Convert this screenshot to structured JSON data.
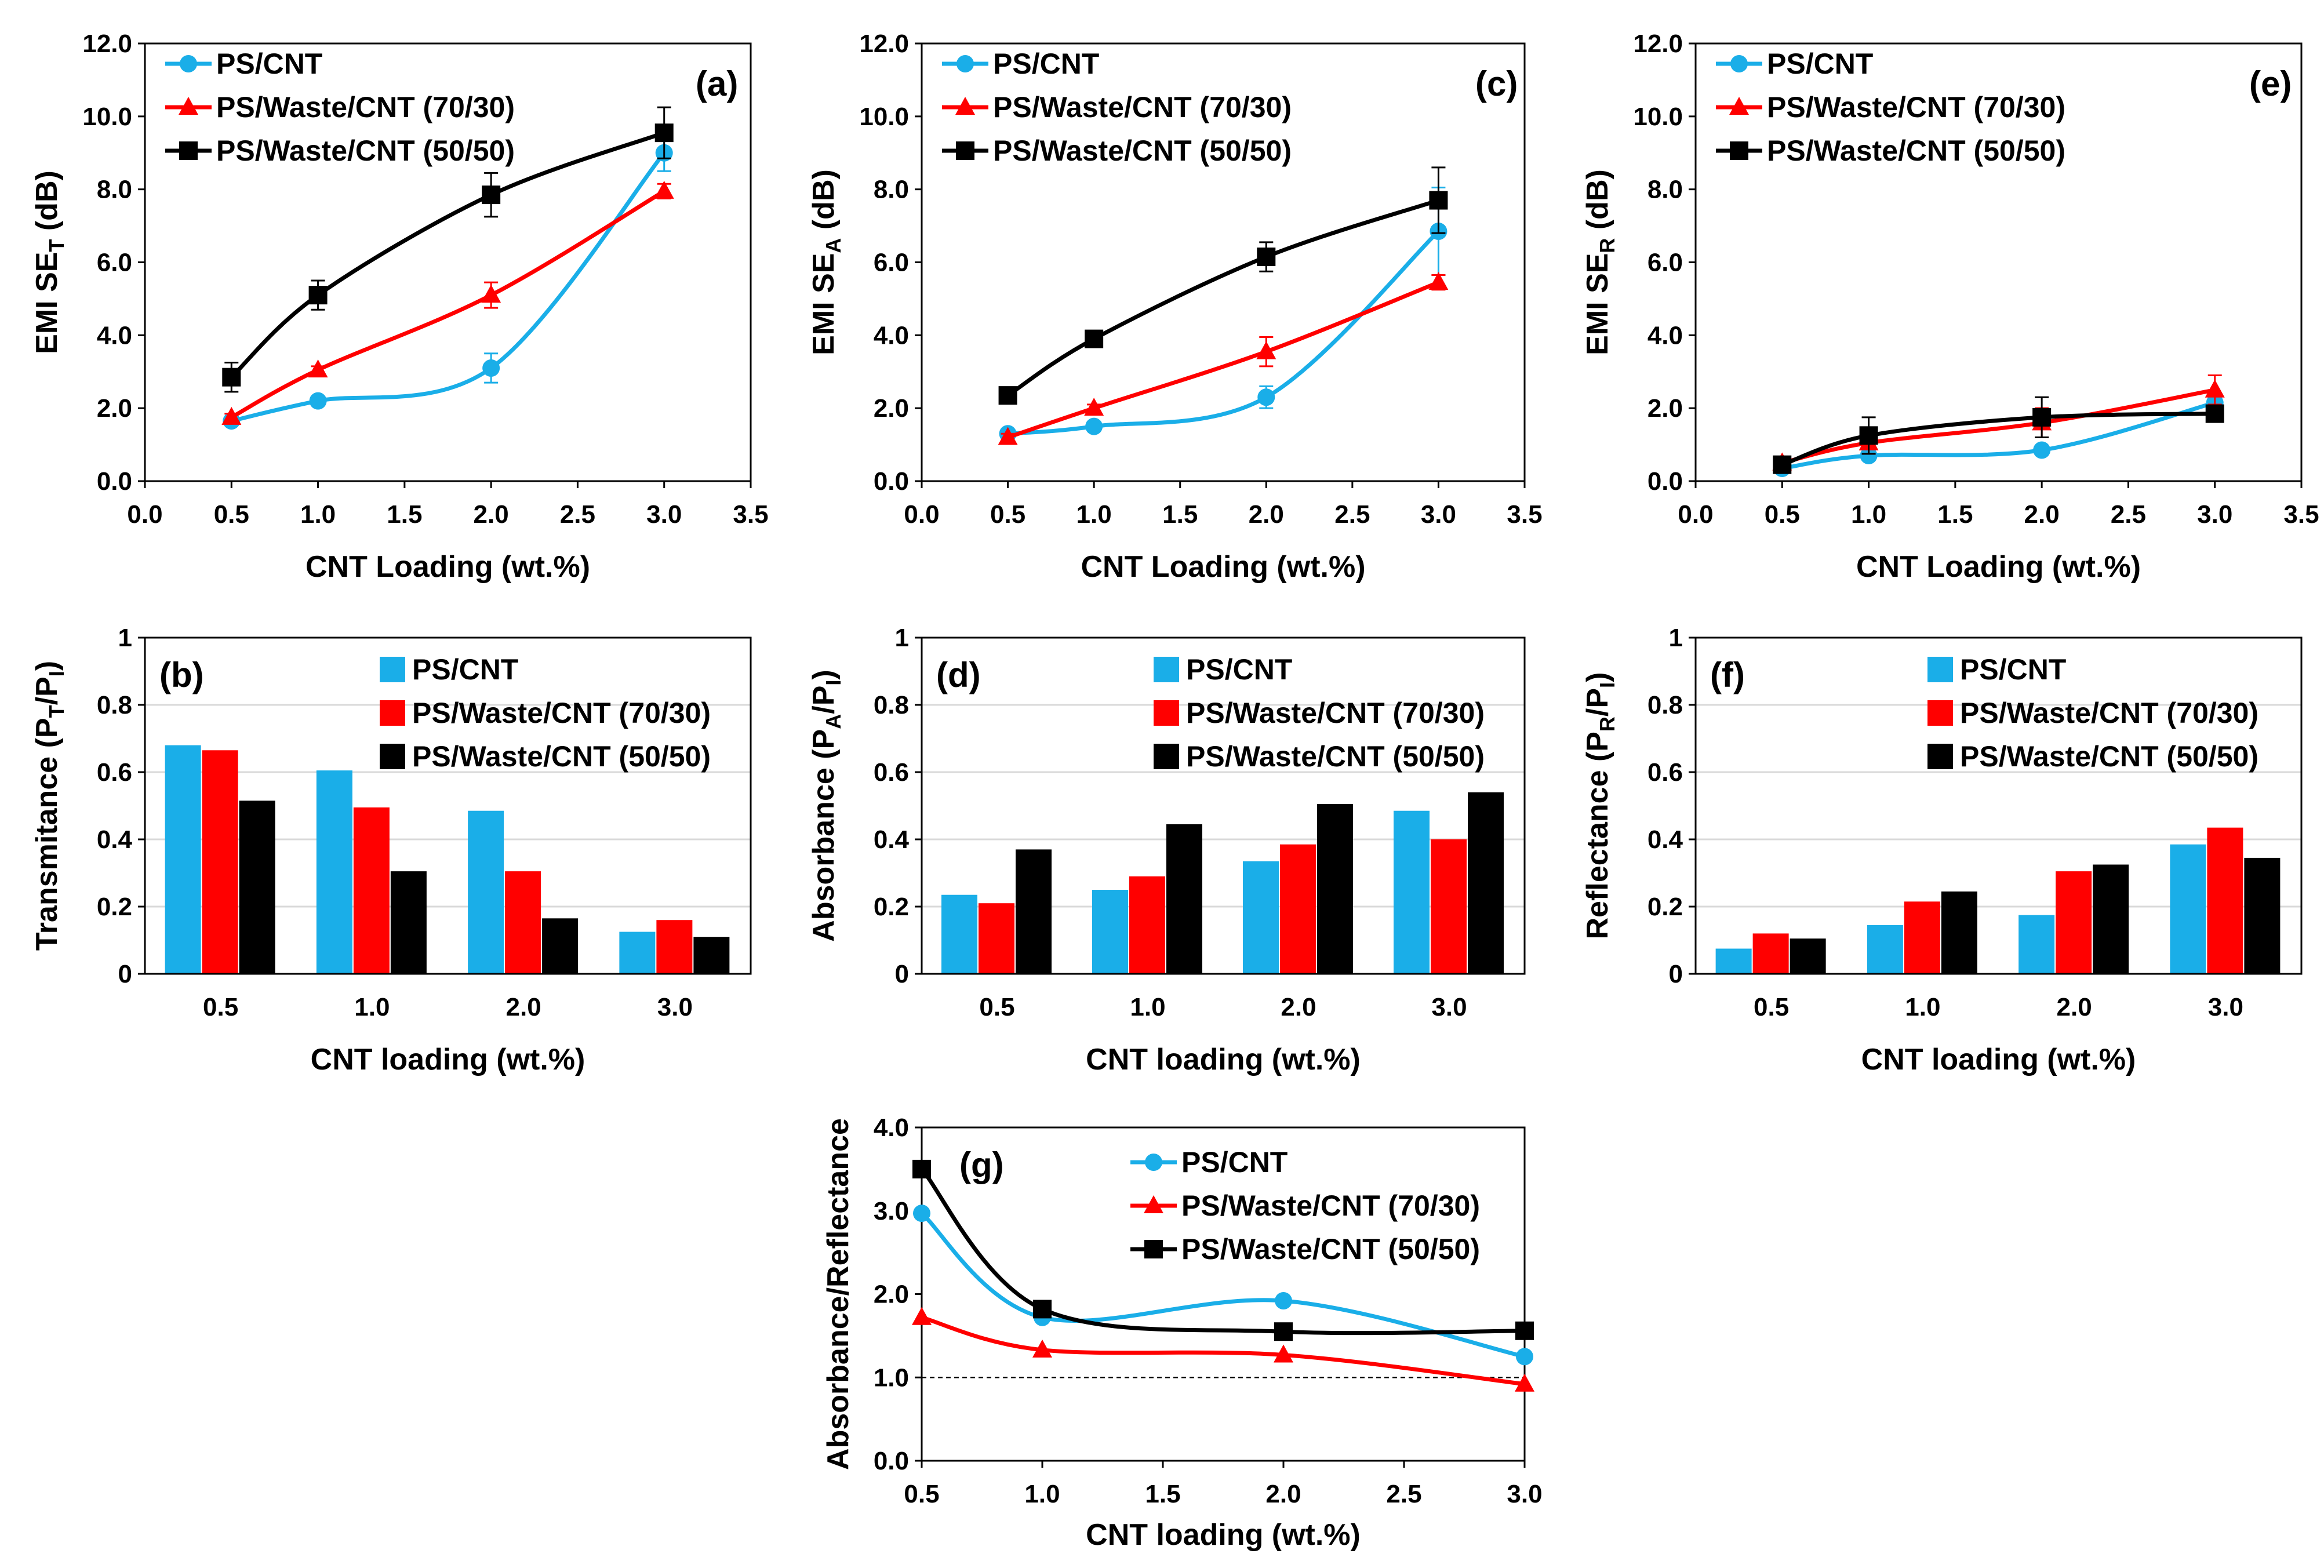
{
  "chart_data": [
    {
      "id": "a",
      "type": "line",
      "panel_label": "(a)",
      "xlabel": "CNT Loading (wt.%)",
      "ylabel": {
        "main": "EMI SE",
        "sub": "T",
        "unit": " (dB)"
      },
      "xlim": [
        0,
        3.5
      ],
      "ylim": [
        0,
        12
      ],
      "xticks": [
        "0.0",
        "0.5",
        "1.0",
        "1.5",
        "2.0",
        "2.5",
        "3.0",
        "3.5"
      ],
      "yticks": [
        "0.0",
        "2.0",
        "4.0",
        "6.0",
        "8.0",
        "10.0",
        "12.0"
      ],
      "legend_position": "top-left",
      "series": [
        {
          "name": "PS/CNT",
          "marker": "circle",
          "x": [
            0.5,
            1.0,
            2.0,
            3.0
          ],
          "y": [
            1.65,
            2.2,
            3.1,
            9.0
          ],
          "err": [
            0.1,
            0.1,
            0.4,
            0.5
          ]
        },
        {
          "name": "PS/Waste/CNT (70/30)",
          "marker": "triangle",
          "x": [
            0.5,
            1.0,
            2.0,
            3.0
          ],
          "y": [
            1.75,
            3.05,
            5.1,
            7.95
          ],
          "err": [
            0.1,
            0.1,
            0.35,
            0.2
          ]
        },
        {
          "name": "PS/Waste/CNT (50/50)",
          "marker": "square",
          "x": [
            0.5,
            1.0,
            2.0,
            3.0
          ],
          "y": [
            2.85,
            5.1,
            7.85,
            9.55
          ],
          "err": [
            0.4,
            0.4,
            0.6,
            0.7
          ]
        }
      ]
    },
    {
      "id": "c",
      "type": "line",
      "panel_label": "(c)",
      "xlabel": "CNT Loading (wt.%)",
      "ylabel": {
        "main": "EMI SE",
        "sub": "A",
        "unit": " (dB)"
      },
      "xlim": [
        0,
        3.5
      ],
      "ylim": [
        0,
        12
      ],
      "xticks": [
        "0.0",
        "0.5",
        "1.0",
        "1.5",
        "2.0",
        "2.5",
        "3.0",
        "3.5"
      ],
      "yticks": [
        "0.0",
        "2.0",
        "4.0",
        "6.0",
        "8.0",
        "10.0",
        "12.0"
      ],
      "legend_position": "top-left",
      "series": [
        {
          "name": "PS/CNT",
          "marker": "circle",
          "x": [
            0.5,
            1.0,
            2.0,
            3.0
          ],
          "y": [
            1.3,
            1.5,
            2.3,
            6.85
          ],
          "err": [
            0.1,
            0.1,
            0.3,
            1.2
          ]
        },
        {
          "name": "PS/Waste/CNT (70/30)",
          "marker": "triangle",
          "x": [
            0.5,
            1.0,
            2.0,
            3.0
          ],
          "y": [
            1.2,
            2.0,
            3.55,
            5.45
          ],
          "err": [
            0.1,
            0.1,
            0.4,
            0.2
          ]
        },
        {
          "name": "PS/Waste/CNT (50/50)",
          "marker": "square",
          "x": [
            0.5,
            1.0,
            2.0,
            3.0
          ],
          "y": [
            2.35,
            3.9,
            6.15,
            7.7
          ],
          "err": [
            0.15,
            0.1,
            0.4,
            0.9
          ]
        }
      ]
    },
    {
      "id": "e",
      "type": "line",
      "panel_label": "(e)",
      "xlabel": "CNT Loading (wt.%)",
      "ylabel": {
        "main": "EMI SE",
        "sub": "R",
        "unit": " (dB)"
      },
      "xlim": [
        0,
        3.5
      ],
      "ylim": [
        0,
        12
      ],
      "xticks": [
        "0.0",
        "0.5",
        "1.0",
        "1.5",
        "2.0",
        "2.5",
        "3.0",
        "3.5"
      ],
      "yticks": [
        "0.0",
        "2.0",
        "4.0",
        "6.0",
        "8.0",
        "10.0",
        "12.0"
      ],
      "legend_position": "top-left",
      "series": [
        {
          "name": "PS/CNT",
          "marker": "circle",
          "x": [
            0.5,
            1.0,
            2.0,
            3.0
          ],
          "y": [
            0.35,
            0.7,
            0.85,
            2.15
          ],
          "err": [
            0.05,
            0.1,
            0.1,
            0.2
          ]
        },
        {
          "name": "PS/Waste/CNT (70/30)",
          "marker": "triangle",
          "x": [
            0.5,
            1.0,
            2.0,
            3.0
          ],
          "y": [
            0.5,
            1.05,
            1.6,
            2.5
          ],
          "err": [
            0.1,
            0.3,
            0.4,
            0.4
          ]
        },
        {
          "name": "PS/Waste/CNT (50/50)",
          "marker": "square",
          "x": [
            0.5,
            1.0,
            2.0,
            3.0
          ],
          "y": [
            0.45,
            1.25,
            1.75,
            1.85
          ],
          "err": [
            0.15,
            0.5,
            0.55,
            0.1
          ]
        }
      ]
    },
    {
      "id": "b",
      "type": "bar",
      "panel_label": "(b)",
      "xlabel": "CNT loading (wt.%)",
      "ylabel": {
        "main": "Transmitance (P",
        "sub": "T",
        "mid": "/P",
        "sub2": "I",
        "unit": ")"
      },
      "categories": [
        "0.5",
        "1.0",
        "2.0",
        "3.0"
      ],
      "ylim": [
        0,
        1
      ],
      "yticks": [
        "0",
        "0.2",
        "0.4",
        "0.6",
        "0.8",
        "1"
      ],
      "legend_position": "top-right",
      "series": [
        {
          "name": "PS/CNT",
          "values": [
            0.68,
            0.605,
            0.485,
            0.125
          ]
        },
        {
          "name": "PS/Waste/CNT (70/30)",
          "values": [
            0.665,
            0.495,
            0.305,
            0.16
          ]
        },
        {
          "name": "PS/Waste/CNT (50/50)",
          "values": [
            0.515,
            0.305,
            0.165,
            0.11
          ]
        }
      ]
    },
    {
      "id": "d",
      "type": "bar",
      "panel_label": "(d)",
      "xlabel": "CNT loading (wt.%)",
      "ylabel": {
        "main": "Absorbance (P",
        "sub": "A",
        "mid": "/P",
        "sub2": "I",
        "unit": ")"
      },
      "categories": [
        "0.5",
        "1.0",
        "2.0",
        "3.0"
      ],
      "ylim": [
        0,
        1
      ],
      "yticks": [
        "0",
        "0.2",
        "0.4",
        "0.6",
        "0.8",
        "1"
      ],
      "legend_position": "top-right",
      "series": [
        {
          "name": "PS/CNT",
          "values": [
            0.235,
            0.25,
            0.335,
            0.485
          ]
        },
        {
          "name": "PS/Waste/CNT (70/30)",
          "values": [
            0.21,
            0.29,
            0.385,
            0.4
          ]
        },
        {
          "name": "PS/Waste/CNT (50/50)",
          "values": [
            0.37,
            0.445,
            0.505,
            0.54
          ]
        }
      ]
    },
    {
      "id": "f",
      "type": "bar",
      "panel_label": "(f)",
      "xlabel": "CNT loading (wt.%)",
      "ylabel": {
        "main": "Reflectance (P",
        "sub": "R",
        "mid": "/P",
        "sub2": "I",
        "unit": ")"
      },
      "categories": [
        "0.5",
        "1.0",
        "2.0",
        "3.0"
      ],
      "ylim": [
        0,
        1
      ],
      "yticks": [
        "0",
        "0.2",
        "0.4",
        "0.6",
        "0.8",
        "1"
      ],
      "legend_position": "top-right",
      "series": [
        {
          "name": "PS/CNT",
          "values": [
            0.075,
            0.145,
            0.175,
            0.385
          ]
        },
        {
          "name": "PS/Waste/CNT (70/30)",
          "values": [
            0.12,
            0.215,
            0.305,
            0.435
          ]
        },
        {
          "name": "PS/Waste/CNT (50/50)",
          "values": [
            0.105,
            0.245,
            0.325,
            0.345
          ]
        }
      ]
    },
    {
      "id": "g",
      "type": "line",
      "panel_label": "(g)",
      "xlabel": "CNT loading (wt.%)",
      "ylabel": {
        "main": "Absorbance/Reflectance"
      },
      "xlim": [
        0.5,
        3.0
      ],
      "ylim": [
        0,
        4
      ],
      "xticks": [
        "0.5",
        "1.0",
        "1.5",
        "2.0",
        "2.5",
        "3.0"
      ],
      "yticks": [
        "0.0",
        "1.0",
        "2.0",
        "3.0",
        "4.0"
      ],
      "reference_line": 1.0,
      "legend_position": "top-right",
      "series": [
        {
          "name": "PS/CNT",
          "marker": "circle",
          "x": [
            0.5,
            1.0,
            2.0,
            3.0
          ],
          "y": [
            2.97,
            1.72,
            1.92,
            1.25
          ]
        },
        {
          "name": "PS/Waste/CNT (70/30)",
          "marker": "triangle",
          "x": [
            0.5,
            1.0,
            2.0,
            3.0
          ],
          "y": [
            1.72,
            1.33,
            1.27,
            0.92
          ]
        },
        {
          "name": "PS/Waste/CNT (50/50)",
          "marker": "square",
          "x": [
            0.5,
            1.0,
            2.0,
            3.0
          ],
          "y": [
            3.5,
            1.82,
            1.55,
            1.56
          ]
        }
      ]
    }
  ],
  "colors": {
    "PS/CNT": "#1aaee8",
    "PS/Waste/CNT (70/30)": "#ff0000",
    "PS/Waste/CNT (50/50)": "#000000",
    "grid": "#d9d9d9",
    "frame": "#000000"
  }
}
